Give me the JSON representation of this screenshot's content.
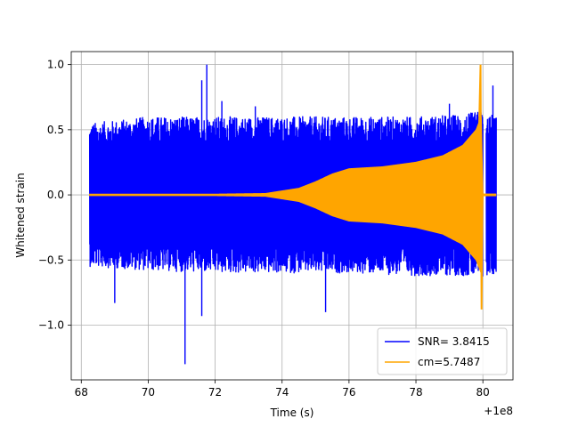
{
  "chart_data": {
    "type": "line",
    "title": "",
    "xlabel": "Time (s)",
    "ylabel": "Whitened strain",
    "x_offset_label": "+1e8",
    "xlim": [
      67.7,
      80.9
    ],
    "ylim": [
      -1.42,
      1.1
    ],
    "xticks": [
      68,
      70,
      72,
      74,
      76,
      78,
      80
    ],
    "xtick_labels": [
      "68",
      "70",
      "72",
      "74",
      "76",
      "78",
      "80"
    ],
    "yticks": [
      -1.0,
      -0.5,
      0.0,
      0.5,
      1.0
    ],
    "ytick_labels": [
      "−1.0",
      "−0.5",
      "0.0",
      "0.5",
      "1.0"
    ],
    "grid": true,
    "legend_position": "bottom-right",
    "series": [
      {
        "name": "SNR= 3.8415",
        "color": "#0000ff",
        "description_points": {
          "x_start": 68.25,
          "x_end": 80.4,
          "gap_start": 80.0,
          "gap_end": 80.1,
          "envelope_x": [
            68.25,
            70,
            72,
            74,
            76,
            78,
            79.5,
            80.0,
            80.4
          ],
          "envelope_upper": [
            0.55,
            0.6,
            0.6,
            0.6,
            0.6,
            0.6,
            0.62,
            0.65,
            0.6
          ],
          "envelope_lower": [
            -0.55,
            -0.58,
            -0.6,
            -0.6,
            -0.6,
            -0.62,
            -0.62,
            -0.65,
            -0.6
          ],
          "spikes": [
            {
              "x": 69.0,
              "y": -0.83
            },
            {
              "x": 71.1,
              "y": -1.3
            },
            {
              "x": 71.6,
              "y": 0.88
            },
            {
              "x": 71.75,
              "y": 1.0
            },
            {
              "x": 72.2,
              "y": 0.72
            },
            {
              "x": 73.2,
              "y": 0.68
            },
            {
              "x": 75.3,
              "y": -0.9
            },
            {
              "x": 71.6,
              "y": -0.93
            },
            {
              "x": 79.0,
              "y": 0.7
            },
            {
              "x": 80.3,
              "y": 0.84
            }
          ]
        }
      },
      {
        "name": "cm=5.7487",
        "color": "#ffa500",
        "description_points": {
          "x_start": 68.25,
          "x_end": 80.4,
          "envelope_x": [
            68.25,
            70,
            72,
            73.5,
            74.5,
            75.0,
            75.5,
            76.0,
            77.0,
            78.0,
            78.8,
            79.4,
            79.8,
            79.95,
            80.0,
            80.4
          ],
          "envelope_amp": [
            0.005,
            0.005,
            0.005,
            0.01,
            0.05,
            0.1,
            0.16,
            0.2,
            0.215,
            0.25,
            0.3,
            0.38,
            0.5,
            0.6,
            0.0,
            0.0
          ],
          "peak_upper": {
            "x": 79.93,
            "y": 1.0
          },
          "peak_lower": {
            "x": 79.96,
            "y": -0.88
          }
        }
      }
    ]
  }
}
